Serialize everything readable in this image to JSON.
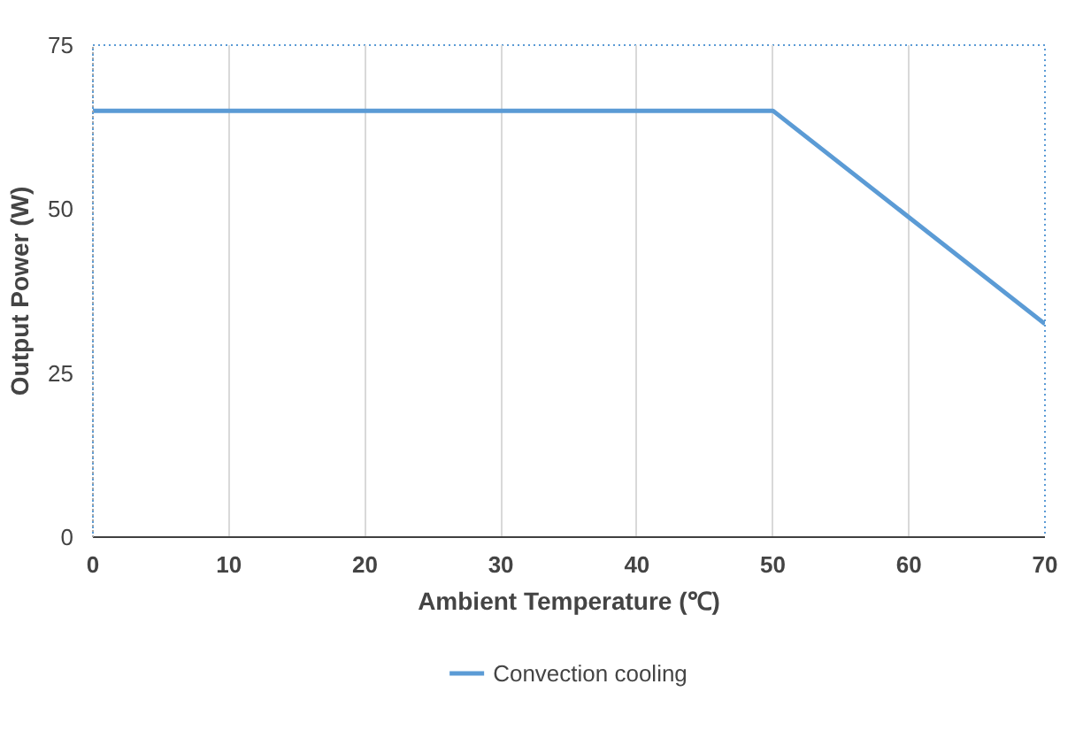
{
  "chart_data": {
    "type": "line",
    "xlabel": "Ambient Temperature (℃)",
    "ylabel": "Output Power (W)",
    "series": [
      {
        "name": "Convection cooling",
        "color": "#5b9bd5",
        "x": [
          0,
          50,
          70
        ],
        "values": [
          65,
          65,
          32.5
        ]
      }
    ],
    "xlim": [
      0,
      70
    ],
    "xticks": [
      0,
      10,
      20,
      30,
      40,
      50,
      60,
      70
    ],
    "ylim": [
      0,
      75
    ],
    "yticks": [
      0,
      25,
      50,
      75
    ],
    "grid": "x",
    "legend": "bottom",
    "marker": "none",
    "line_style": "solid"
  }
}
